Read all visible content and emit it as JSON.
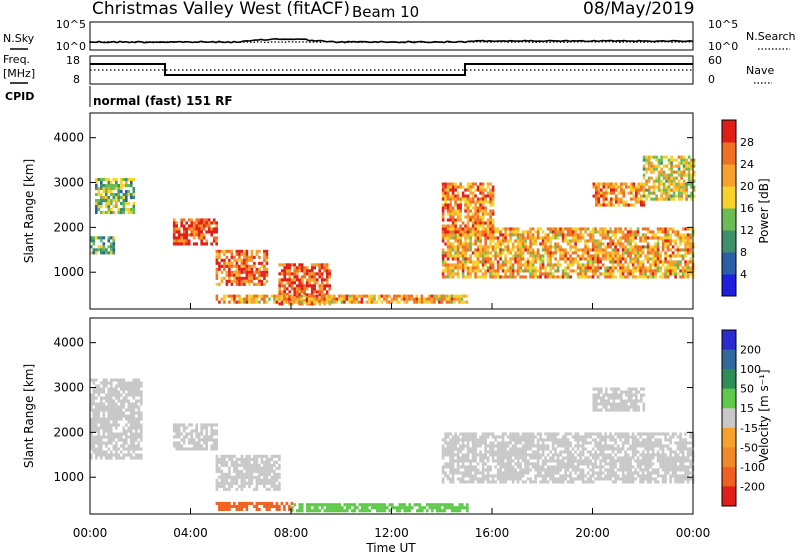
{
  "header": {
    "station": "Christmas Valley West (fitACF)",
    "beam": "Beam 10",
    "date": "08/May/2019"
  },
  "noise_panel": {
    "left_label": "N.Sky",
    "right_label": "N.Search",
    "left_ticks": [
      "10^5",
      "10^0"
    ],
    "right_ticks": [
      "10^5",
      "10^0"
    ]
  },
  "freq_panel": {
    "left_label_1": "Freq.",
    "left_label_2": "[MHz]",
    "right_label": "Nave",
    "left_ticks": [
      "18",
      "8"
    ],
    "right_ticks": [
      "60",
      "0"
    ]
  },
  "cpid": {
    "label": "CPID",
    "text": "normal (fast) 151 RF"
  },
  "colorbars": {
    "power": {
      "label": "Power [dB]",
      "ticks": [
        "4",
        "8",
        "12",
        "16",
        "20",
        "24",
        "28"
      ],
      "colors": [
        "#1f1fe0",
        "#2a5ea8",
        "#3e8f6b",
        "#6cbc54",
        "#f6d22a",
        "#f5a12c",
        "#f07023",
        "#e02018"
      ]
    },
    "velocity": {
      "label": "Velocity [m s⁻¹]",
      "ticks": [
        "200",
        "100",
        "50",
        "15",
        "-15",
        "-50",
        "-100",
        "-200"
      ],
      "colors": [
        "#2b2bd0",
        "#2f6a9c",
        "#2e8e58",
        "#5fc94a",
        "#c8c8c8",
        "#f5a12c",
        "#f08a28",
        "#f06020",
        "#e21e18"
      ]
    }
  },
  "chart_data": [
    {
      "type": "heatmap",
      "title": "Power",
      "ylabel": "Slant Range [km]",
      "ylim": [
        180,
        4550
      ],
      "y_ticks": [
        "1000",
        "2000",
        "3000",
        "4000"
      ],
      "x_ticks": [
        "00:00",
        "04:00",
        "08:00",
        "12:00",
        "16:00",
        "20:00",
        "00:00"
      ],
      "grid": false,
      "regions": [
        {
          "t": [
            0.2,
            1.7
          ],
          "r": [
            2300,
            3100
          ],
          "value": 14
        },
        {
          "t": [
            0.0,
            0.9
          ],
          "r": [
            1400,
            1800
          ],
          "value": 12
        },
        {
          "t": [
            3.3,
            5.0
          ],
          "r": [
            1600,
            2200
          ],
          "value": 28
        },
        {
          "t": [
            5.0,
            7.0
          ],
          "r": [
            700,
            1500
          ],
          "value": 26
        },
        {
          "t": [
            7.5,
            9.5
          ],
          "r": [
            300,
            1200
          ],
          "value": 27
        },
        {
          "t": [
            5.0,
            15.0
          ],
          "r": [
            320,
            500
          ],
          "value": 22
        },
        {
          "t": [
            14.0,
            24.0
          ],
          "r": [
            900,
            2000
          ],
          "value": 22
        },
        {
          "t": [
            14.0,
            16.0
          ],
          "r": [
            1800,
            3000
          ],
          "value": 24
        },
        {
          "t": [
            20.0,
            22.0
          ],
          "r": [
            2500,
            3000
          ],
          "value": 24
        },
        {
          "t": [
            22.0,
            24.0
          ],
          "r": [
            2600,
            3600
          ],
          "value": 18
        }
      ]
    },
    {
      "type": "heatmap",
      "title": "Velocity",
      "ylabel": "Slant Range [km]",
      "xlabel": "Time UT",
      "ylim": [
        180,
        4550
      ],
      "y_ticks": [
        "1000",
        "2000",
        "3000",
        "4000"
      ],
      "x_ticks": [
        "00:00",
        "04:00",
        "08:00",
        "12:00",
        "16:00",
        "20:00",
        "00:00"
      ],
      "grid": false,
      "regions": [
        {
          "t": [
            0.0,
            2.0
          ],
          "r": [
            1400,
            3200
          ],
          "value": 0
        },
        {
          "t": [
            3.3,
            5.0
          ],
          "r": [
            1600,
            2200
          ],
          "value": 0
        },
        {
          "t": [
            5.0,
            7.5
          ],
          "r": [
            700,
            1500
          ],
          "value": 0
        },
        {
          "t": [
            5.0,
            8.0
          ],
          "r": [
            300,
            450
          ],
          "value": -120
        },
        {
          "t": [
            8.0,
            15.0
          ],
          "r": [
            260,
            420
          ],
          "value": 30
        },
        {
          "t": [
            14.0,
            24.0
          ],
          "r": [
            900,
            2000
          ],
          "value": 0
        },
        {
          "t": [
            20.0,
            22.0
          ],
          "r": [
            2500,
            3000
          ],
          "value": 0
        }
      ]
    }
  ]
}
